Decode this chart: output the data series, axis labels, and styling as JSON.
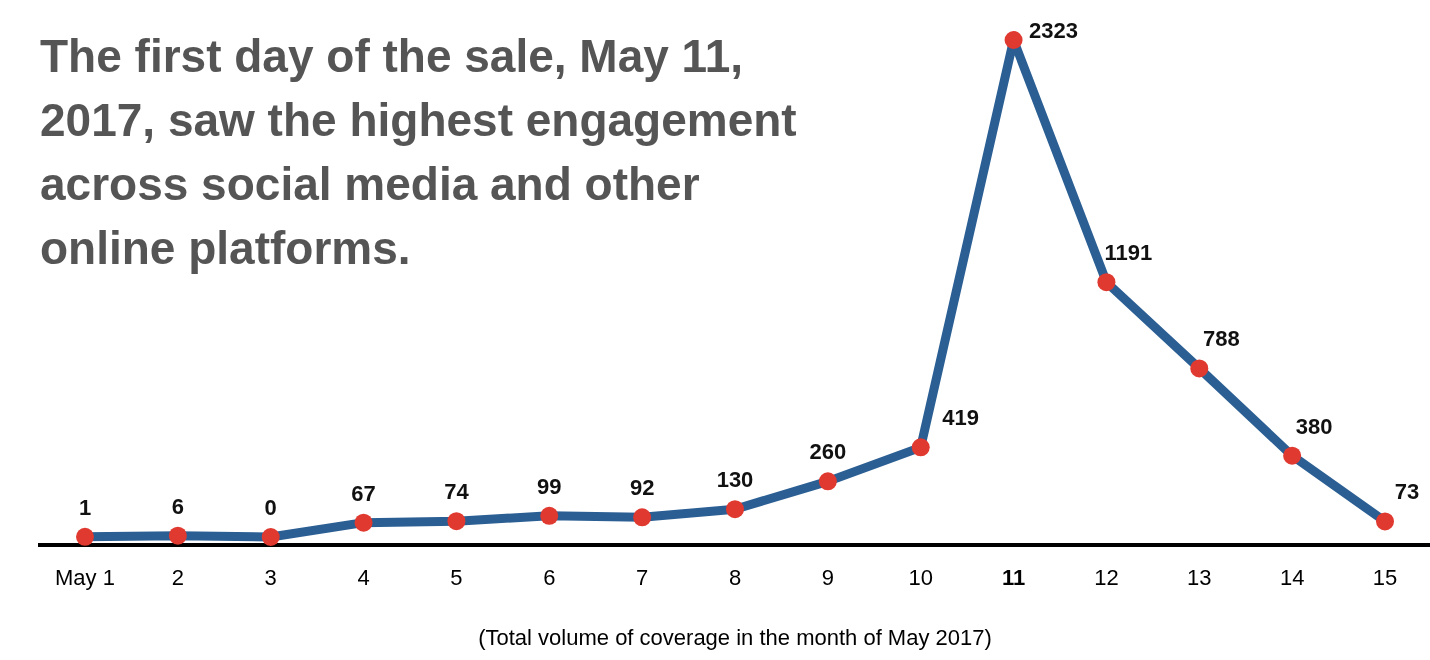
{
  "chart_data": {
    "type": "line",
    "title": "The first day of the sale, May 11, 2017, saw the highest engagement across social media and other online platforms.",
    "xlabel": "(Total volume of coverage in the month of May 2017)",
    "categories": [
      "May 1",
      "2",
      "3",
      "4",
      "5",
      "6",
      "7",
      "8",
      "9",
      "10",
      "11",
      "12",
      "13",
      "14",
      "15"
    ],
    "series": [
      {
        "color": "#2b5f94",
        "values": [
          1,
          6,
          0,
          67,
          74,
          99,
          92,
          130,
          260,
          419,
          2323,
          1191,
          788,
          380,
          73
        ]
      }
    ],
    "marker": "circle",
    "data_labels": true
  }
}
